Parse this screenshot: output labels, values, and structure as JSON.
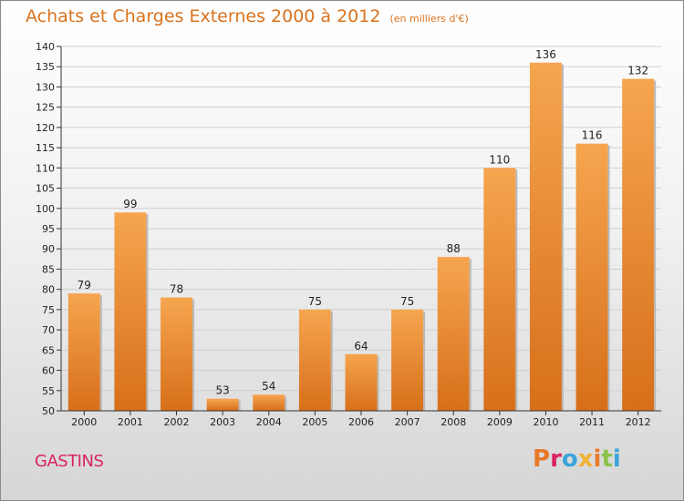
{
  "header": {
    "title": "Achats et Charges Externes 2000 à 2012",
    "subtitle": "(en milliers d'€)"
  },
  "footer": {
    "commune": "GASTINS",
    "logo_text": "Proxiti",
    "logo_colors": [
      "#e8792a",
      "#d8245e",
      "#3aa4dc",
      "#f2b134",
      "#e8792a",
      "#8bc34a",
      "#3aa4dc"
    ]
  },
  "colors": {
    "bar_top": "#f6a54f",
    "bar_bottom": "#d76f1a",
    "axis": "#333333",
    "grid": "#cfcfcf"
  },
  "chart_data": {
    "type": "bar",
    "title": "Achats et Charges Externes 2000 à 2012",
    "subtitle": "(en milliers d'€)",
    "categories": [
      "2000",
      "2001",
      "2002",
      "2003",
      "2004",
      "2005",
      "2006",
      "2007",
      "2008",
      "2009",
      "2010",
      "2011",
      "2012"
    ],
    "values": [
      79,
      99,
      78,
      53,
      54,
      75,
      64,
      75,
      88,
      110,
      136,
      116,
      132
    ],
    "ylim": [
      50,
      140
    ],
    "yticks": [
      50,
      55,
      60,
      65,
      70,
      75,
      80,
      85,
      90,
      95,
      100,
      105,
      110,
      115,
      120,
      125,
      130,
      135,
      140
    ],
    "grid": true,
    "data_labels": true,
    "legend": "none"
  }
}
